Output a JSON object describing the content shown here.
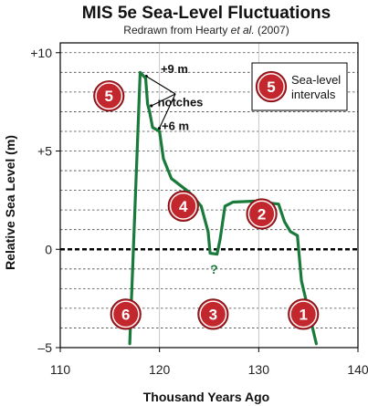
{
  "chart_data": {
    "type": "line",
    "title": "MIS 5e Sea-Level Fluctuations",
    "subtitle_prefix": "Redrawn from Hearty ",
    "subtitle_italic": "et al.",
    "subtitle_suffix": " (2007)",
    "xlabel": "Thousand Years Ago",
    "ylabel": "Relative Sea Level (m)",
    "xlim": [
      110,
      140
    ],
    "ylim": [
      -5,
      10.5
    ],
    "x_ticks": [
      110,
      120,
      130,
      140
    ],
    "x_tick_labels": [
      "110",
      "120",
      "130",
      "140"
    ],
    "y_ticks": [
      -5,
      0,
      5,
      10
    ],
    "y_tick_labels": [
      "–5",
      "0",
      "+5",
      "+10"
    ],
    "grid": {
      "horizontal_dashed_step": 1,
      "vertical_at": [
        120,
        130
      ]
    },
    "zero_line": true,
    "series": [
      {
        "color": "#1a7a3c",
        "points": [
          [
            117.0,
            -4.8
          ],
          [
            118.05,
            9.0
          ],
          [
            118.6,
            8.7
          ],
          [
            118.8,
            7.4
          ],
          [
            119.0,
            7.0
          ],
          [
            119.3,
            6.2
          ],
          [
            120.0,
            6.0
          ],
          [
            120.4,
            4.6
          ],
          [
            121.2,
            3.6
          ],
          [
            123.0,
            2.9
          ],
          [
            124.2,
            2.2
          ],
          [
            124.9,
            0.9
          ],
          [
            125.1,
            -0.2
          ],
          [
            125.8,
            -0.25
          ],
          [
            126.1,
            0.5
          ],
          [
            126.6,
            2.2
          ],
          [
            127.4,
            2.4
          ],
          [
            129.5,
            2.45
          ],
          [
            132.0,
            2.3
          ],
          [
            132.6,
            1.4
          ],
          [
            133.2,
            0.9
          ],
          [
            133.9,
            0.7
          ],
          [
            134.3,
            -1.6
          ],
          [
            135.8,
            -4.8
          ]
        ]
      }
    ],
    "annotations": [
      {
        "text": "+9 m",
        "x": 121.5,
        "y": 9.2
      },
      {
        "text": "notches",
        "x": 122.1,
        "y": 7.5
      },
      {
        "text": "+6 m",
        "x": 121.6,
        "y": 6.3
      },
      {
        "text": "?",
        "x": 125.5,
        "y": -1.0
      }
    ],
    "interval_markers": [
      {
        "label": "1",
        "x": 134.5,
        "y": -3.3
      },
      {
        "label": "2",
        "x": 130.3,
        "y": 1.8
      },
      {
        "label": "3",
        "x": 125.4,
        "y": -3.3
      },
      {
        "label": "4",
        "x": 122.4,
        "y": 2.2
      },
      {
        "label": "5",
        "x": 114.9,
        "y": 7.8
      },
      {
        "label": "6",
        "x": 116.6,
        "y": -3.3
      }
    ],
    "legend": {
      "position": "top-right",
      "marker_label": "5",
      "text_line1": "Sea-level",
      "text_line2": "intervals"
    },
    "colors": {
      "line": "#1a7a3c",
      "marker_fill": "#c1272d",
      "marker_stroke": "#ffffff",
      "grid": "#444444"
    }
  }
}
